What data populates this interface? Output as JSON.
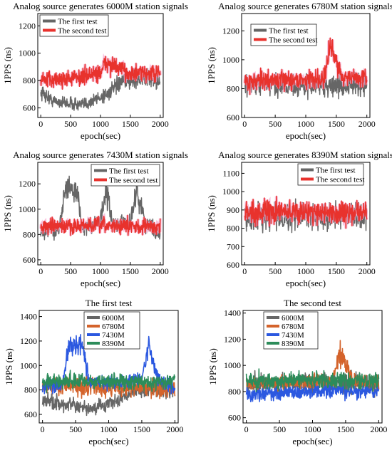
{
  "colors": {
    "first_test": "#666666",
    "second_test": "#e8322d",
    "second_test_halo": "#f7a8cf",
    "s6000M": "#666666",
    "s6780M": "#d4632b",
    "s7430M": "#2b58e0",
    "s8390M": "#2c8c5a"
  },
  "chart_data": [
    {
      "type": "line",
      "title": "Analog source generates 6000M station signals",
      "xlabel": "epoch(sec)",
      "ylabel": "1PPS (ns)",
      "xlim": [
        -50,
        2050
      ],
      "ylim": [
        530,
        1290
      ],
      "xticks": [
        0,
        500,
        1000,
        1500,
        2000
      ],
      "yticks": [
        600,
        800,
        1000,
        1200
      ],
      "legend": "top-left",
      "series": [
        {
          "name": "The first test",
          "color": "#666666",
          "segments": [
            [
              0,
              720,
              90
            ],
            [
              200,
              650,
              60
            ],
            [
              700,
              620,
              70
            ],
            [
              1100,
              700,
              80
            ],
            [
              1400,
              800,
              80
            ],
            [
              1800,
              820,
              90
            ],
            [
              2000,
              800,
              90
            ]
          ]
        },
        {
          "name": "The second test",
          "color": "#e8322d",
          "segments": [
            [
              0,
              800,
              90
            ],
            [
              600,
              820,
              90
            ],
            [
              1000,
              860,
              100
            ],
            [
              1100,
              930,
              100
            ],
            [
              1500,
              850,
              90
            ],
            [
              2000,
              850,
              90
            ]
          ]
        }
      ]
    },
    {
      "type": "line",
      "title": "Analog source generates 6780M station signals",
      "xlabel": "epoch(sec)",
      "ylabel": "1PPS (ns)",
      "xlim": [
        -50,
        2050
      ],
      "ylim": [
        600,
        1320
      ],
      "xticks": [
        0,
        500,
        1000,
        1500,
        2000
      ],
      "yticks": [
        600,
        800,
        1000,
        1200
      ],
      "legend": "top-left",
      "series": [
        {
          "name": "The first test",
          "color": "#666666",
          "segments": [
            [
              0,
              830,
              110
            ],
            [
              1000,
              820,
              110
            ],
            [
              2000,
              820,
              110
            ]
          ]
        },
        {
          "name": "The second test",
          "color": "#e8322d",
          "segments": [
            [
              0,
              850,
              90
            ],
            [
              1300,
              870,
              90
            ],
            [
              1400,
              1080,
              140
            ],
            [
              1500,
              1000,
              110
            ],
            [
              1600,
              880,
              90
            ],
            [
              2000,
              870,
              90
            ]
          ]
        }
      ]
    },
    {
      "type": "line",
      "title": "Analog source generates 7430M station signals",
      "xlabel": "epoch(sec)",
      "ylabel": "1PPS (ns)",
      "xlim": [
        -50,
        2050
      ],
      "ylim": [
        560,
        1370
      ],
      "xticks": [
        0,
        500,
        1000,
        1500,
        2000
      ],
      "yticks": [
        600,
        800,
        1000,
        1200
      ],
      "legend": "top-center",
      "series": [
        {
          "name": "The first test",
          "color": "#666666",
          "segments": [
            [
              0,
              820,
              80
            ],
            [
              300,
              840,
              80
            ],
            [
              400,
              1150,
              140
            ],
            [
              600,
              1150,
              140
            ],
            [
              700,
              850,
              80
            ],
            [
              1000,
              900,
              100
            ],
            [
              1100,
              1150,
              140
            ],
            [
              1200,
              880,
              90
            ],
            [
              1500,
              900,
              90
            ],
            [
              1600,
              1150,
              150
            ],
            [
              1750,
              900,
              90
            ],
            [
              2000,
              800,
              80
            ]
          ]
        },
        {
          "name": "The second test",
          "color": "#e8322d",
          "segments": [
            [
              0,
              860,
              90
            ],
            [
              1000,
              870,
              90
            ],
            [
              2000,
              860,
              90
            ]
          ]
        }
      ]
    },
    {
      "type": "line",
      "title": "Analog source generates 8390M station signals",
      "xlabel": "epoch(sec)",
      "ylabel": "1PPS (ns)",
      "xlim": [
        -50,
        2050
      ],
      "ylim": [
        600,
        1160
      ],
      "xticks": [
        0,
        500,
        1000,
        1500,
        2000
      ],
      "yticks": [
        600,
        700,
        800,
        900,
        1000,
        1100
      ],
      "legend": "top-right",
      "series": [
        {
          "name": "The first test",
          "color": "#666666",
          "segments": [
            [
              0,
              860,
              100
            ],
            [
              1000,
              870,
              100
            ],
            [
              2000,
              860,
              100
            ]
          ]
        },
        {
          "name": "The second test",
          "color": "#e8322d",
          "segments": [
            [
              0,
              890,
              90
            ],
            [
              1000,
              890,
              90
            ],
            [
              2000,
              880,
              90
            ]
          ]
        }
      ]
    },
    {
      "type": "line",
      "title": "The first test",
      "xlabel": "epoch(sec)",
      "ylabel": "1PPS (ns)",
      "xlim": [
        -50,
        2050
      ],
      "ylim": [
        530,
        1450
      ],
      "xticks": [
        0,
        500,
        1000,
        1500,
        2000
      ],
      "yticks": [
        600,
        800,
        1000,
        1200,
        1400
      ],
      "legend": "top-center",
      "series": [
        {
          "name": "6000M",
          "color": "#666666",
          "segments": [
            [
              0,
              720,
              90
            ],
            [
              700,
              640,
              70
            ],
            [
              1100,
              700,
              80
            ],
            [
              1400,
              800,
              80
            ],
            [
              2000,
              800,
              90
            ]
          ]
        },
        {
          "name": "6780M",
          "color": "#d4632b",
          "segments": [
            [
              0,
              830,
              100
            ],
            [
              1000,
              820,
              100
            ],
            [
              2000,
              810,
              100
            ]
          ]
        },
        {
          "name": "7430M",
          "color": "#2b58e0",
          "segments": [
            [
              0,
              830,
              80
            ],
            [
              300,
              840,
              80
            ],
            [
              400,
              1160,
              130
            ],
            [
              600,
              1160,
              130
            ],
            [
              700,
              860,
              80
            ],
            [
              1500,
              880,
              80
            ],
            [
              1600,
              1170,
              130
            ],
            [
              1750,
              880,
              80
            ],
            [
              2000,
              820,
              80
            ]
          ]
        },
        {
          "name": "8390M",
          "color": "#2c8c5a",
          "segments": [
            [
              0,
              870,
              90
            ],
            [
              1000,
              870,
              90
            ],
            [
              2000,
              860,
              90
            ]
          ]
        }
      ]
    },
    {
      "type": "line",
      "title": "The second test",
      "xlabel": "epoch(sec)",
      "ylabel": "1PPS (ns)",
      "xlim": [
        -50,
        2050
      ],
      "ylim": [
        560,
        1420
      ],
      "xticks": [
        0,
        500,
        1000,
        1500,
        2000
      ],
      "yticks": [
        600,
        800,
        1000,
        1200,
        1400
      ],
      "legend": "top-center",
      "series": [
        {
          "name": "6000M",
          "color": "#666666",
          "segments": [
            [
              0,
              850,
              100
            ],
            [
              1000,
              880,
              100
            ],
            [
              2000,
              860,
              100
            ]
          ]
        },
        {
          "name": "6780M",
          "color": "#d4632b",
          "segments": [
            [
              0,
              860,
              80
            ],
            [
              1300,
              870,
              80
            ],
            [
              1400,
              1100,
              140
            ],
            [
              1500,
              1020,
              110
            ],
            [
              1600,
              880,
              80
            ],
            [
              2000,
              870,
              80
            ]
          ]
        },
        {
          "name": "7430M",
          "color": "#2b58e0",
          "segments": [
            [
              0,
              780,
              80
            ],
            [
              1000,
              800,
              80
            ],
            [
              2000,
              800,
              80
            ]
          ]
        },
        {
          "name": "8390M",
          "color": "#2c8c5a",
          "segments": [
            [
              0,
              880,
              90
            ],
            [
              1000,
              890,
              90
            ],
            [
              2000,
              880,
              90
            ]
          ]
        }
      ]
    }
  ]
}
